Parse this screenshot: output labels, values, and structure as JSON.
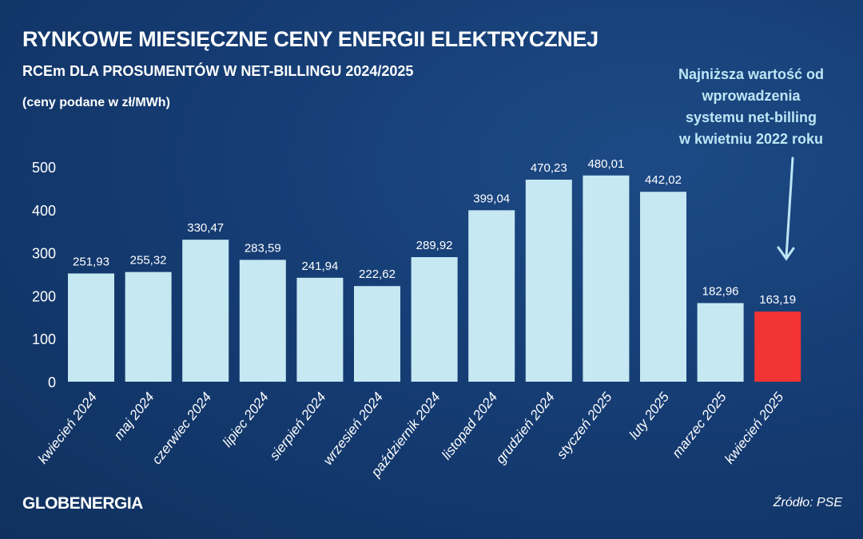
{
  "chart_data": {
    "type": "bar",
    "title": "RYNKOWE MIESIĘCZNE CENY ENERGII ELEKTRYCZNEJ",
    "subtitle": "RCEm DLA PROSUMENTÓW W NET-BILLINGU 2024/2025",
    "unit_note": "(ceny podane w zł/MWh)",
    "categories": [
      "kwiecień 2024",
      "maj 2024",
      "czerwiec 2024",
      "lipiec 2024",
      "sierpień 2024",
      "wrzesień 2024",
      "październik 2024",
      "listopad 2024",
      "grudzień 2024",
      "styczeń 2025",
      "luty 2025",
      "marzec 2025",
      "kwiecień 2025"
    ],
    "values": [
      251.93,
      255.32,
      330.47,
      283.59,
      241.94,
      222.62,
      289.92,
      399.04,
      470.23,
      480.01,
      442.02,
      182.96,
      163.19
    ],
    "value_labels": [
      "251,93",
      "255,32",
      "330,47",
      "283,59",
      "241,94",
      "222,62",
      "289,92",
      "399,04",
      "470,23",
      "480,01",
      "442,02",
      "182,96",
      "163,19"
    ],
    "ylim": [
      0,
      500
    ],
    "yticks": [
      0,
      100,
      200,
      300,
      400,
      500
    ],
    "grid": false,
    "colors": {
      "bar": "#c6e8f2",
      "highlight": "#f23333",
      "background": "#143a70",
      "annotation": "#bde6f5"
    },
    "highlight_index": 12,
    "annotation": "Najniższa wartość od wprowadzenia systemu net-billing w kwietniu 2022 roku",
    "annotation_lines": [
      "Najniższa wartość od",
      "wprowadzenia",
      "systemu net-billing",
      "w kwietniu 2022 roku"
    ],
    "annotation_icon": "arrow-down-icon"
  },
  "footer": {
    "logo": "GLOBENERGIA",
    "source": "Źródło: PSE"
  }
}
